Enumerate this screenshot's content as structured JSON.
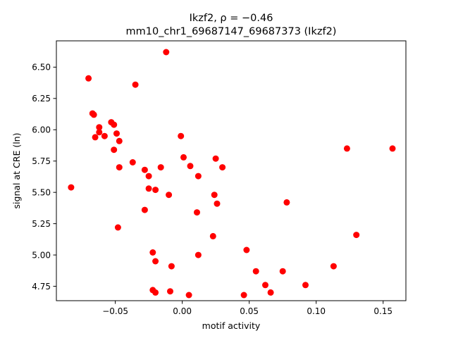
{
  "chart_data": {
    "type": "scatter",
    "title_line1": "Ikzf2, ρ = −0.46",
    "title_line2": "mm10_chr1_69687147_69687373 (Ikzf2)",
    "xlabel": "motif activity",
    "ylabel": "signal at CRE (ln)",
    "xlim": [
      -0.094,
      0.167
    ],
    "ylim": [
      4.635,
      6.71
    ],
    "xticks": [
      -0.05,
      0.0,
      0.05,
      0.1,
      0.15
    ],
    "xtick_labels": [
      "−0.05",
      "0.00",
      "0.05",
      "0.10",
      "0.15"
    ],
    "yticks": [
      4.75,
      5.0,
      5.25,
      5.5,
      5.75,
      6.0,
      6.25,
      6.5
    ],
    "ytick_labels": [
      "4.75",
      "5.00",
      "5.25",
      "5.50",
      "5.75",
      "6.00",
      "6.25",
      "6.50"
    ],
    "marker_color": "#ff0000",
    "grid": false,
    "points": [
      {
        "x": -0.083,
        "y": 5.54
      },
      {
        "x": -0.07,
        "y": 6.41
      },
      {
        "x": -0.067,
        "y": 6.13
      },
      {
        "x": -0.066,
        "y": 6.12
      },
      {
        "x": -0.065,
        "y": 5.94
      },
      {
        "x": -0.062,
        "y": 6.02
      },
      {
        "x": -0.062,
        "y": 5.98
      },
      {
        "x": -0.058,
        "y": 5.95
      },
      {
        "x": -0.053,
        "y": 6.06
      },
      {
        "x": -0.051,
        "y": 6.04
      },
      {
        "x": -0.051,
        "y": 5.84
      },
      {
        "x": -0.049,
        "y": 5.97
      },
      {
        "x": -0.047,
        "y": 5.91
      },
      {
        "x": -0.047,
        "y": 5.7
      },
      {
        "x": -0.048,
        "y": 5.22
      },
      {
        "x": -0.037,
        "y": 5.74
      },
      {
        "x": -0.035,
        "y": 6.36
      },
      {
        "x": -0.028,
        "y": 5.68
      },
      {
        "x": -0.028,
        "y": 5.36
      },
      {
        "x": -0.025,
        "y": 5.63
      },
      {
        "x": -0.025,
        "y": 5.53
      },
      {
        "x": -0.022,
        "y": 5.02
      },
      {
        "x": -0.022,
        "y": 4.72
      },
      {
        "x": -0.02,
        "y": 5.52
      },
      {
        "x": -0.02,
        "y": 4.95
      },
      {
        "x": -0.02,
        "y": 4.7
      },
      {
        "x": -0.016,
        "y": 5.7
      },
      {
        "x": -0.012,
        "y": 6.62
      },
      {
        "x": -0.01,
        "y": 5.48
      },
      {
        "x": -0.009,
        "y": 4.71
      },
      {
        "x": -0.008,
        "y": 4.91
      },
      {
        "x": -0.001,
        "y": 5.95
      },
      {
        "x": 0.001,
        "y": 5.78
      },
      {
        "x": 0.006,
        "y": 5.71
      },
      {
        "x": 0.005,
        "y": 4.68
      },
      {
        "x": 0.011,
        "y": 5.34
      },
      {
        "x": 0.012,
        "y": 5.63
      },
      {
        "x": 0.012,
        "y": 5.0
      },
      {
        "x": 0.023,
        "y": 5.15
      },
      {
        "x": 0.024,
        "y": 5.48
      },
      {
        "x": 0.025,
        "y": 5.77
      },
      {
        "x": 0.026,
        "y": 5.41
      },
      {
        "x": 0.03,
        "y": 5.7
      },
      {
        "x": 0.046,
        "y": 4.68
      },
      {
        "x": 0.048,
        "y": 5.04
      },
      {
        "x": 0.055,
        "y": 4.87
      },
      {
        "x": 0.062,
        "y": 4.76
      },
      {
        "x": 0.066,
        "y": 4.7
      },
      {
        "x": 0.075,
        "y": 4.87
      },
      {
        "x": 0.078,
        "y": 5.42
      },
      {
        "x": 0.092,
        "y": 4.76
      },
      {
        "x": 0.113,
        "y": 4.91
      },
      {
        "x": 0.123,
        "y": 5.85
      },
      {
        "x": 0.13,
        "y": 5.16
      },
      {
        "x": 0.157,
        "y": 5.85
      }
    ]
  }
}
